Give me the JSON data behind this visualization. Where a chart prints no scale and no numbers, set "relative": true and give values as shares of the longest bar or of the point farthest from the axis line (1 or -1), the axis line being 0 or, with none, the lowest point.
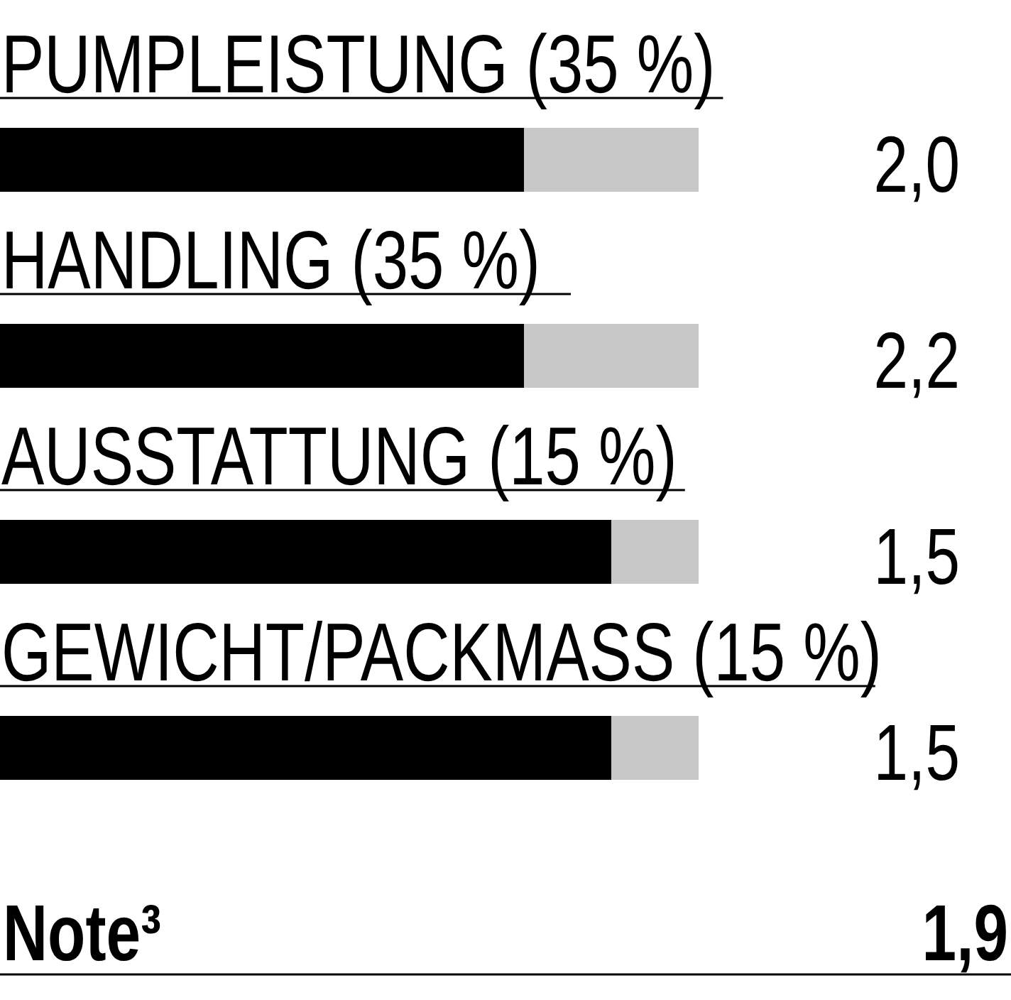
{
  "chart_data": {
    "type": "bar",
    "orientation": "horizontal",
    "stacked": true,
    "relative": true,
    "legend": false,
    "categories": [
      "PUMPLEISTUNG (35 %)",
      "HANDLING (35 %)",
      "AUSSTATTUNG (15 %)",
      "GEWICHT/PACKMASS (15 %)"
    ],
    "series": [
      {
        "color": "#000000",
        "values": [
          0.75,
          0.75,
          0.875,
          0.875
        ]
      },
      {
        "color": "#c8c8c8",
        "values": [
          0.25,
          0.25,
          0.125,
          0.125
        ]
      }
    ],
    "annotations": [
      "2,0",
      "2,2",
      "1,5",
      "1,5",
      "Note³",
      "1,9"
    ]
  }
}
